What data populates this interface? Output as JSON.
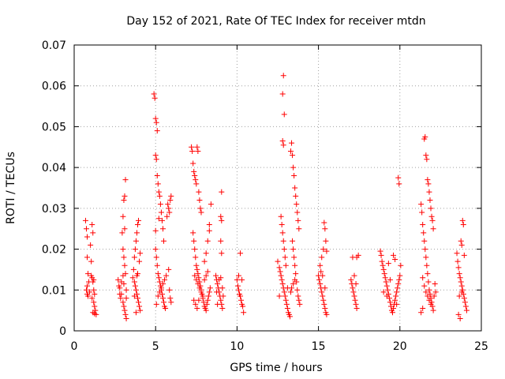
{
  "chart_data": {
    "type": "scatter",
    "title": "Day 152 of 2021, Rate Of TEC Index for receiver mtdn",
    "xlabel": "GPS time / hours",
    "ylabel": "ROTI / TECUs",
    "xlim": [
      0,
      25
    ],
    "ylim": [
      0,
      0.07
    ],
    "x_ticks": [
      0,
      5,
      10,
      15,
      20,
      25
    ],
    "y_ticks": [
      0,
      0.01,
      0.02,
      0.03,
      0.04,
      0.05,
      0.06,
      0.07
    ],
    "x_tick_labels": [
      "0",
      "5",
      "10",
      "15",
      "20",
      "25"
    ],
    "y_tick_labels": [
      "0",
      "0.01",
      "0.02",
      "0.03",
      "0.04",
      "0.05",
      "0.06",
      "0.07"
    ],
    "grid": true,
    "marker": "plus",
    "marker_color": "#ff0000",
    "points": [
      [
        0.7,
        0.027
      ],
      [
        0.75,
        0.025
      ],
      [
        0.8,
        0.023
      ],
      [
        0.8,
        0.018
      ],
      [
        0.85,
        0.014
      ],
      [
        0.8,
        0.011
      ],
      [
        0.75,
        0.01
      ],
      [
        0.8,
        0.009
      ],
      [
        0.85,
        0.0085
      ],
      [
        0.9,
        0.012
      ],
      [
        0.95,
        0.0095
      ],
      [
        1.0,
        0.021
      ],
      [
        1.05,
        0.017
      ],
      [
        1.1,
        0.026
      ],
      [
        1.15,
        0.024
      ],
      [
        1.1,
        0.013
      ],
      [
        1.15,
        0.012
      ],
      [
        1.2,
        0.01
      ],
      [
        1.25,
        0.009
      ],
      [
        1.1,
        0.008
      ],
      [
        1.2,
        0.007
      ],
      [
        1.25,
        0.006
      ],
      [
        1.3,
        0.005
      ],
      [
        1.15,
        0.0045
      ],
      [
        1.35,
        0.004
      ],
      [
        1.25,
        0.0042
      ],
      [
        1.05,
        0.0135
      ],
      [
        1.2,
        0.0125
      ],
      [
        2.7,
        0.0125
      ],
      [
        2.75,
        0.011
      ],
      [
        2.8,
        0.009
      ],
      [
        2.85,
        0.008
      ],
      [
        2.9,
        0.012
      ],
      [
        2.95,
        0.024
      ],
      [
        3.0,
        0.028
      ],
      [
        3.05,
        0.032
      ],
      [
        3.1,
        0.033
      ],
      [
        3.15,
        0.037
      ],
      [
        3.0,
        0.02
      ],
      [
        3.05,
        0.018
      ],
      [
        3.1,
        0.016
      ],
      [
        3.15,
        0.014
      ],
      [
        3.2,
        0.01
      ],
      [
        3.0,
        0.007
      ],
      [
        3.05,
        0.006
      ],
      [
        3.1,
        0.005
      ],
      [
        3.15,
        0.004
      ],
      [
        3.2,
        0.003
      ],
      [
        2.9,
        0.009
      ],
      [
        3.2,
        0.008
      ],
      [
        3.1,
        0.025
      ],
      [
        3.0,
        0.0135
      ],
      [
        2.8,
        0.0105
      ],
      [
        3.05,
        0.0115
      ],
      [
        3.6,
        0.013
      ],
      [
        3.65,
        0.015
      ],
      [
        3.7,
        0.018
      ],
      [
        3.75,
        0.02
      ],
      [
        3.8,
        0.022
      ],
      [
        3.85,
        0.024
      ],
      [
        3.9,
        0.026
      ],
      [
        3.95,
        0.027
      ],
      [
        3.7,
        0.012
      ],
      [
        3.75,
        0.011
      ],
      [
        3.8,
        0.01
      ],
      [
        3.85,
        0.009
      ],
      [
        3.9,
        0.008
      ],
      [
        3.95,
        0.007
      ],
      [
        4.0,
        0.006
      ],
      [
        4.05,
        0.005
      ],
      [
        3.8,
        0.0045
      ],
      [
        3.9,
        0.014
      ],
      [
        4.0,
        0.017
      ],
      [
        4.05,
        0.019
      ],
      [
        3.85,
        0.0135
      ],
      [
        3.7,
        0.0085
      ],
      [
        4.9,
        0.058
      ],
      [
        4.95,
        0.057
      ],
      [
        5.0,
        0.052
      ],
      [
        5.05,
        0.051
      ],
      [
        5.1,
        0.049
      ],
      [
        5.0,
        0.043
      ],
      [
        5.05,
        0.042
      ],
      [
        5.1,
        0.038
      ],
      [
        5.15,
        0.036
      ],
      [
        5.2,
        0.034
      ],
      [
        5.25,
        0.033
      ],
      [
        5.3,
        0.031
      ],
      [
        5.35,
        0.029
      ],
      [
        5.4,
        0.027
      ],
      [
        5.45,
        0.025
      ],
      [
        5.5,
        0.022
      ],
      [
        5.0,
        0.02
      ],
      [
        5.05,
        0.018
      ],
      [
        5.1,
        0.016
      ],
      [
        5.15,
        0.014
      ],
      [
        5.2,
        0.013
      ],
      [
        5.25,
        0.012
      ],
      [
        5.3,
        0.011
      ],
      [
        5.35,
        0.01
      ],
      [
        5.4,
        0.009
      ],
      [
        5.45,
        0.008
      ],
      [
        5.5,
        0.007
      ],
      [
        5.55,
        0.006
      ],
      [
        5.6,
        0.0055
      ],
      [
        5.05,
        0.0065
      ],
      [
        5.15,
        0.0085
      ],
      [
        5.25,
        0.0095
      ],
      [
        5.35,
        0.0105
      ],
      [
        5.45,
        0.0115
      ],
      [
        5.55,
        0.0125
      ],
      [
        5.65,
        0.0135
      ],
      [
        5.7,
        0.028
      ],
      [
        5.75,
        0.031
      ],
      [
        5.8,
        0.03
      ],
      [
        5.85,
        0.029
      ],
      [
        5.9,
        0.032
      ],
      [
        5.95,
        0.033
      ],
      [
        5.8,
        0.015
      ],
      [
        5.85,
        0.01
      ],
      [
        5.9,
        0.008
      ],
      [
        5.95,
        0.007
      ],
      [
        5.0,
        0.0245
      ],
      [
        5.2,
        0.0275
      ],
      [
        7.2,
        0.045
      ],
      [
        7.25,
        0.044
      ],
      [
        7.3,
        0.041
      ],
      [
        7.35,
        0.039
      ],
      [
        7.4,
        0.038
      ],
      [
        7.45,
        0.037
      ],
      [
        7.5,
        0.036
      ],
      [
        7.55,
        0.045
      ],
      [
        7.6,
        0.044
      ],
      [
        7.65,
        0.034
      ],
      [
        7.7,
        0.032
      ],
      [
        7.75,
        0.03
      ],
      [
        7.8,
        0.029
      ],
      [
        7.3,
        0.024
      ],
      [
        7.35,
        0.022
      ],
      [
        7.4,
        0.02
      ],
      [
        7.45,
        0.018
      ],
      [
        7.5,
        0.016
      ],
      [
        7.55,
        0.015
      ],
      [
        7.6,
        0.014
      ],
      [
        7.65,
        0.013
      ],
      [
        7.7,
        0.012
      ],
      [
        7.75,
        0.011
      ],
      [
        7.8,
        0.01
      ],
      [
        7.85,
        0.009
      ],
      [
        7.9,
        0.008
      ],
      [
        7.95,
        0.007
      ],
      [
        8.0,
        0.006
      ],
      [
        8.05,
        0.0055
      ],
      [
        8.1,
        0.005
      ],
      [
        8.15,
        0.0065
      ],
      [
        8.2,
        0.0075
      ],
      [
        8.25,
        0.0085
      ],
      [
        8.3,
        0.0095
      ],
      [
        8.35,
        0.0105
      ],
      [
        7.4,
        0.0135
      ],
      [
        7.5,
        0.0125
      ],
      [
        7.6,
        0.0115
      ],
      [
        7.7,
        0.0105
      ],
      [
        7.8,
        0.0095
      ],
      [
        7.9,
        0.0085
      ],
      [
        8.0,
        0.0125
      ],
      [
        8.1,
        0.0135
      ],
      [
        8.2,
        0.0145
      ],
      [
        7.45,
        0.0065
      ],
      [
        7.55,
        0.0055
      ],
      [
        7.65,
        0.0075
      ],
      [
        8.0,
        0.017
      ],
      [
        8.1,
        0.019
      ],
      [
        8.2,
        0.022
      ],
      [
        8.3,
        0.026
      ],
      [
        8.4,
        0.031
      ],
      [
        8.3,
        0.0245
      ],
      [
        7.35,
        0.0075
      ],
      [
        8.7,
        0.0135
      ],
      [
        8.75,
        0.0125
      ],
      [
        8.8,
        0.0115
      ],
      [
        8.85,
        0.0105
      ],
      [
        8.9,
        0.0095
      ],
      [
        8.95,
        0.0085
      ],
      [
        9.0,
        0.0075
      ],
      [
        9.05,
        0.0065
      ],
      [
        9.1,
        0.0055
      ],
      [
        8.8,
        0.0065
      ],
      [
        8.9,
        0.0125
      ],
      [
        9.0,
        0.013
      ],
      [
        9.05,
        0.034
      ],
      [
        9.0,
        0.028
      ],
      [
        9.05,
        0.027
      ],
      [
        9.0,
        0.022
      ],
      [
        9.05,
        0.019
      ],
      [
        9.1,
        0.0105
      ],
      [
        9.15,
        0.0085
      ],
      [
        8.75,
        0.0095
      ],
      [
        10.0,
        0.0125
      ],
      [
        10.05,
        0.011
      ],
      [
        10.1,
        0.01
      ],
      [
        10.15,
        0.009
      ],
      [
        10.2,
        0.0085
      ],
      [
        10.25,
        0.0075
      ],
      [
        10.3,
        0.0065
      ],
      [
        10.35,
        0.006
      ],
      [
        10.2,
        0.019
      ],
      [
        10.3,
        0.0125
      ],
      [
        10.4,
        0.0045
      ],
      [
        10.1,
        0.0135
      ],
      [
        12.5,
        0.017
      ],
      [
        12.6,
        0.0155
      ],
      [
        12.65,
        0.0145
      ],
      [
        12.7,
        0.0135
      ],
      [
        12.75,
        0.0125
      ],
      [
        12.8,
        0.0115
      ],
      [
        12.85,
        0.0105
      ],
      [
        12.9,
        0.0095
      ],
      [
        12.95,
        0.0085
      ],
      [
        13.0,
        0.0075
      ],
      [
        13.05,
        0.0065
      ],
      [
        13.1,
        0.0055
      ],
      [
        13.15,
        0.0045
      ],
      [
        13.2,
        0.004
      ],
      [
        13.25,
        0.0035
      ],
      [
        12.7,
        0.028
      ],
      [
        12.75,
        0.026
      ],
      [
        12.8,
        0.024
      ],
      [
        12.85,
        0.022
      ],
      [
        12.9,
        0.02
      ],
      [
        12.95,
        0.018
      ],
      [
        13.0,
        0.016
      ],
      [
        12.8,
        0.0465
      ],
      [
        12.85,
        0.0455
      ],
      [
        12.8,
        0.058
      ],
      [
        12.85,
        0.0625
      ],
      [
        12.9,
        0.053
      ],
      [
        13.3,
        0.044
      ],
      [
        13.35,
        0.046
      ],
      [
        13.4,
        0.043
      ],
      [
        13.45,
        0.04
      ],
      [
        13.5,
        0.038
      ],
      [
        13.55,
        0.035
      ],
      [
        13.6,
        0.033
      ],
      [
        13.65,
        0.031
      ],
      [
        13.7,
        0.029
      ],
      [
        13.75,
        0.027
      ],
      [
        13.8,
        0.025
      ],
      [
        13.4,
        0.022
      ],
      [
        13.45,
        0.02
      ],
      [
        13.5,
        0.018
      ],
      [
        13.55,
        0.016
      ],
      [
        13.6,
        0.014
      ],
      [
        13.65,
        0.012
      ],
      [
        13.7,
        0.01
      ],
      [
        13.75,
        0.0085
      ],
      [
        13.8,
        0.0075
      ],
      [
        13.85,
        0.0065
      ],
      [
        13.3,
        0.0095
      ],
      [
        13.35,
        0.0105
      ],
      [
        13.45,
        0.0115
      ],
      [
        13.55,
        0.0125
      ],
      [
        13.1,
        0.0105
      ],
      [
        12.6,
        0.0085
      ],
      [
        15.0,
        0.0135
      ],
      [
        15.05,
        0.0125
      ],
      [
        15.1,
        0.0115
      ],
      [
        15.15,
        0.0105
      ],
      [
        15.2,
        0.0095
      ],
      [
        15.25,
        0.0085
      ],
      [
        15.3,
        0.0075
      ],
      [
        15.35,
        0.0065
      ],
      [
        15.4,
        0.0055
      ],
      [
        15.45,
        0.0045
      ],
      [
        15.5,
        0.004
      ],
      [
        15.1,
        0.016
      ],
      [
        15.2,
        0.018
      ],
      [
        15.3,
        0.02
      ],
      [
        15.35,
        0.0265
      ],
      [
        15.4,
        0.025
      ],
      [
        15.45,
        0.022
      ],
      [
        15.5,
        0.0195
      ],
      [
        15.15,
        0.0145
      ],
      [
        15.25,
        0.0135
      ],
      [
        15.4,
        0.0105
      ],
      [
        17.0,
        0.0125
      ],
      [
        17.05,
        0.0115
      ],
      [
        17.1,
        0.0105
      ],
      [
        17.15,
        0.0095
      ],
      [
        17.2,
        0.0085
      ],
      [
        17.25,
        0.0075
      ],
      [
        17.3,
        0.0065
      ],
      [
        17.35,
        0.0055
      ],
      [
        17.1,
        0.018
      ],
      [
        17.35,
        0.018
      ],
      [
        17.45,
        0.0185
      ],
      [
        17.2,
        0.0135
      ],
      [
        17.3,
        0.0115
      ],
      [
        18.8,
        0.0195
      ],
      [
        18.85,
        0.0185
      ],
      [
        18.9,
        0.017
      ],
      [
        18.95,
        0.016
      ],
      [
        19.0,
        0.015
      ],
      [
        19.05,
        0.014
      ],
      [
        19.1,
        0.013
      ],
      [
        19.15,
        0.012
      ],
      [
        19.2,
        0.011
      ],
      [
        19.25,
        0.01
      ],
      [
        19.3,
        0.009
      ],
      [
        19.35,
        0.008
      ],
      [
        19.4,
        0.007
      ],
      [
        19.45,
        0.006
      ],
      [
        19.5,
        0.005
      ],
      [
        19.55,
        0.0045
      ],
      [
        19.6,
        0.0055
      ],
      [
        19.65,
        0.0065
      ],
      [
        19.7,
        0.0075
      ],
      [
        19.75,
        0.0085
      ],
      [
        19.8,
        0.0095
      ],
      [
        19.85,
        0.0105
      ],
      [
        19.9,
        0.0115
      ],
      [
        19.95,
        0.0125
      ],
      [
        20.0,
        0.0135
      ],
      [
        19.9,
        0.0375
      ],
      [
        19.95,
        0.036
      ],
      [
        20.05,
        0.016
      ],
      [
        19.6,
        0.0185
      ],
      [
        19.7,
        0.0175
      ],
      [
        19.3,
        0.0165
      ],
      [
        19.0,
        0.0095
      ],
      [
        19.2,
        0.0085
      ],
      [
        19.4,
        0.0125
      ],
      [
        19.8,
        0.0065
      ],
      [
        21.3,
        0.031
      ],
      [
        21.35,
        0.029
      ],
      [
        21.4,
        0.026
      ],
      [
        21.45,
        0.024
      ],
      [
        21.5,
        0.022
      ],
      [
        21.55,
        0.02
      ],
      [
        21.6,
        0.018
      ],
      [
        21.65,
        0.016
      ],
      [
        21.7,
        0.014
      ],
      [
        21.75,
        0.012
      ],
      [
        21.8,
        0.01
      ],
      [
        21.85,
        0.009
      ],
      [
        21.9,
        0.008
      ],
      [
        21.95,
        0.007
      ],
      [
        22.0,
        0.006
      ],
      [
        22.05,
        0.005
      ],
      [
        21.4,
        0.013
      ],
      [
        21.5,
        0.011
      ],
      [
        21.6,
        0.0095
      ],
      [
        21.7,
        0.0085
      ],
      [
        21.8,
        0.0075
      ],
      [
        21.9,
        0.0065
      ],
      [
        21.5,
        0.047
      ],
      [
        21.55,
        0.0475
      ],
      [
        21.6,
        0.043
      ],
      [
        21.65,
        0.042
      ],
      [
        21.7,
        0.037
      ],
      [
        21.75,
        0.036
      ],
      [
        21.8,
        0.034
      ],
      [
        21.85,
        0.032
      ],
      [
        21.9,
        0.03
      ],
      [
        21.95,
        0.028
      ],
      [
        22.0,
        0.027
      ],
      [
        22.05,
        0.025
      ],
      [
        21.3,
        0.0045
      ],
      [
        21.4,
        0.0055
      ],
      [
        22.1,
        0.0085
      ],
      [
        22.15,
        0.0115
      ],
      [
        22.2,
        0.0095
      ],
      [
        23.5,
        0.019
      ],
      [
        23.55,
        0.017
      ],
      [
        23.6,
        0.0155
      ],
      [
        23.65,
        0.014
      ],
      [
        23.7,
        0.013
      ],
      [
        23.75,
        0.012
      ],
      [
        23.8,
        0.011
      ],
      [
        23.85,
        0.01
      ],
      [
        23.9,
        0.009
      ],
      [
        23.95,
        0.008
      ],
      [
        24.0,
        0.007
      ],
      [
        24.05,
        0.006
      ],
      [
        24.1,
        0.005
      ],
      [
        23.6,
        0.004
      ],
      [
        23.7,
        0.003
      ],
      [
        23.8,
        0.0095
      ],
      [
        23.85,
        0.027
      ],
      [
        23.9,
        0.026
      ],
      [
        23.75,
        0.022
      ],
      [
        23.8,
        0.021
      ],
      [
        23.95,
        0.0185
      ],
      [
        23.65,
        0.0085
      ]
    ]
  }
}
